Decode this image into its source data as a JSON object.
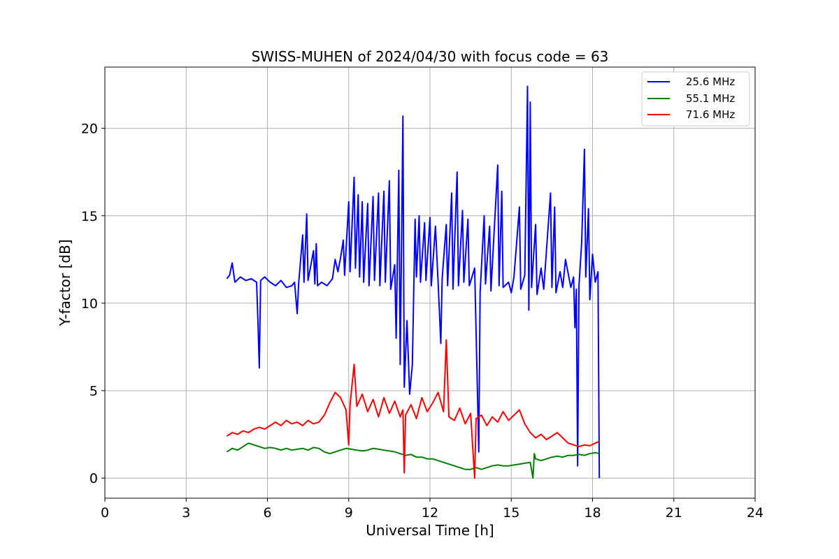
{
  "chart_data": {
    "type": "line",
    "title": "SWISS-MUHEN of 2024/04/30 with focus code = 63",
    "xlabel": "Universal Time [h]",
    "ylabel": "Y-factor [dB]",
    "xlim": [
      0,
      24
    ],
    "ylim": [
      -1.15,
      23.5
    ],
    "xticks": [
      0,
      3,
      6,
      9,
      12,
      15,
      18,
      21,
      24
    ],
    "yticks": [
      0,
      5,
      10,
      15,
      20
    ],
    "grid": true,
    "legend_position": "top-right",
    "series": [
      {
        "name": "25.6 MHz",
        "color": "#0000ff",
        "points": [
          [
            4.5,
            11.4
          ],
          [
            4.6,
            11.6
          ],
          [
            4.7,
            12.3
          ],
          [
            4.8,
            11.2
          ],
          [
            5.0,
            11.5
          ],
          [
            5.2,
            11.3
          ],
          [
            5.4,
            11.4
          ],
          [
            5.6,
            11.2
          ],
          [
            5.65,
            9.0
          ],
          [
            5.7,
            6.3
          ],
          [
            5.75,
            11.3
          ],
          [
            5.9,
            11.5
          ],
          [
            6.1,
            11.2
          ],
          [
            6.3,
            11.0
          ],
          [
            6.5,
            11.3
          ],
          [
            6.7,
            10.9
          ],
          [
            6.9,
            11.0
          ],
          [
            7.0,
            11.2
          ],
          [
            7.1,
            9.4
          ],
          [
            7.15,
            11.1
          ],
          [
            7.3,
            13.9
          ],
          [
            7.35,
            11.2
          ],
          [
            7.45,
            15.1
          ],
          [
            7.5,
            11.3
          ],
          [
            7.7,
            13.0
          ],
          [
            7.75,
            11.1
          ],
          [
            7.8,
            13.4
          ],
          [
            7.85,
            11.0
          ],
          [
            8.0,
            11.2
          ],
          [
            8.2,
            11.0
          ],
          [
            8.4,
            11.4
          ],
          [
            8.5,
            12.5
          ],
          [
            8.6,
            11.8
          ],
          [
            8.7,
            12.6
          ],
          [
            8.8,
            13.6
          ],
          [
            8.85,
            11.6
          ],
          [
            9.0,
            15.8
          ],
          [
            9.05,
            11.8
          ],
          [
            9.2,
            17.2
          ],
          [
            9.25,
            12.0
          ],
          [
            9.35,
            16.2
          ],
          [
            9.4,
            11.5
          ],
          [
            9.5,
            15.8
          ],
          [
            9.55,
            11.2
          ],
          [
            9.7,
            15.7
          ],
          [
            9.75,
            11.0
          ],
          [
            9.9,
            16.1
          ],
          [
            9.95,
            11.3
          ],
          [
            10.1,
            16.3
          ],
          [
            10.15,
            11.0
          ],
          [
            10.3,
            16.4
          ],
          [
            10.35,
            11.2
          ],
          [
            10.5,
            17.0
          ],
          [
            10.55,
            10.8
          ],
          [
            10.7,
            12.2
          ],
          [
            10.75,
            8.0
          ],
          [
            10.85,
            17.6
          ],
          [
            10.9,
            6.5
          ],
          [
            11.0,
            20.7
          ],
          [
            11.05,
            5.2
          ],
          [
            11.15,
            9.0
          ],
          [
            11.25,
            4.8
          ],
          [
            11.35,
            6.5
          ],
          [
            11.45,
            14.8
          ],
          [
            11.5,
            11.5
          ],
          [
            11.6,
            15.0
          ],
          [
            11.65,
            11.2
          ],
          [
            11.8,
            14.6
          ],
          [
            11.85,
            11.3
          ],
          [
            12.0,
            14.9
          ],
          [
            12.05,
            11.0
          ],
          [
            12.2,
            14.4
          ],
          [
            12.3,
            11.2
          ],
          [
            12.4,
            7.7
          ],
          [
            12.45,
            11.4
          ],
          [
            12.6,
            14.5
          ],
          [
            12.65,
            11.0
          ],
          [
            12.8,
            16.3
          ],
          [
            12.85,
            10.8
          ],
          [
            13.0,
            17.5
          ],
          [
            13.05,
            11.0
          ],
          [
            13.2,
            15.3
          ],
          [
            13.25,
            11.2
          ],
          [
            13.4,
            14.8
          ],
          [
            13.45,
            11.0
          ],
          [
            13.65,
            12.0
          ],
          [
            13.8,
            1.5
          ],
          [
            13.85,
            10.6
          ],
          [
            14.0,
            15.0
          ],
          [
            14.05,
            11.1
          ],
          [
            14.2,
            14.4
          ],
          [
            14.25,
            10.7
          ],
          [
            14.5,
            17.9
          ],
          [
            14.55,
            11.0
          ],
          [
            14.65,
            16.4
          ],
          [
            14.7,
            10.9
          ],
          [
            14.9,
            11.2
          ],
          [
            15.0,
            10.6
          ],
          [
            15.1,
            11.5
          ],
          [
            15.3,
            15.5
          ],
          [
            15.35,
            10.8
          ],
          [
            15.5,
            11.6
          ],
          [
            15.6,
            22.4
          ],
          [
            15.65,
            9.6
          ],
          [
            15.7,
            21.5
          ],
          [
            15.75,
            10.9
          ],
          [
            15.9,
            14.5
          ],
          [
            15.95,
            10.5
          ],
          [
            16.1,
            12.0
          ],
          [
            16.2,
            10.8
          ],
          [
            16.45,
            16.3
          ],
          [
            16.5,
            10.9
          ],
          [
            16.6,
            15.5
          ],
          [
            16.65,
            10.6
          ],
          [
            16.8,
            11.8
          ],
          [
            16.9,
            10.9
          ],
          [
            17.0,
            12.5
          ],
          [
            17.2,
            10.9
          ],
          [
            17.3,
            11.5
          ],
          [
            17.35,
            8.6
          ],
          [
            17.4,
            10.8
          ],
          [
            17.45,
            0.7
          ],
          [
            17.5,
            11.0
          ],
          [
            17.6,
            13.5
          ],
          [
            17.7,
            18.8
          ],
          [
            17.75,
            11.5
          ],
          [
            17.85,
            15.4
          ],
          [
            17.9,
            10.2
          ],
          [
            18.0,
            12.8
          ],
          [
            18.1,
            11.2
          ],
          [
            18.2,
            11.8
          ],
          [
            18.25,
            0.0
          ]
        ]
      },
      {
        "name": "55.1 MHz",
        "color": "#008000",
        "points": [
          [
            4.5,
            1.5
          ],
          [
            4.7,
            1.7
          ],
          [
            4.9,
            1.6
          ],
          [
            5.1,
            1.8
          ],
          [
            5.3,
            2.0
          ],
          [
            5.5,
            1.9
          ],
          [
            5.7,
            1.8
          ],
          [
            5.9,
            1.7
          ],
          [
            6.1,
            1.75
          ],
          [
            6.3,
            1.7
          ],
          [
            6.5,
            1.6
          ],
          [
            6.7,
            1.7
          ],
          [
            6.9,
            1.6
          ],
          [
            7.1,
            1.65
          ],
          [
            7.3,
            1.7
          ],
          [
            7.5,
            1.6
          ],
          [
            7.7,
            1.75
          ],
          [
            7.9,
            1.7
          ],
          [
            8.1,
            1.5
          ],
          [
            8.3,
            1.4
          ],
          [
            8.5,
            1.5
          ],
          [
            8.7,
            1.6
          ],
          [
            8.9,
            1.7
          ],
          [
            9.1,
            1.65
          ],
          [
            9.3,
            1.6
          ],
          [
            9.5,
            1.55
          ],
          [
            9.7,
            1.6
          ],
          [
            9.9,
            1.7
          ],
          [
            10.1,
            1.65
          ],
          [
            10.3,
            1.6
          ],
          [
            10.5,
            1.55
          ],
          [
            10.7,
            1.5
          ],
          [
            10.9,
            1.4
          ],
          [
            11.1,
            1.3
          ],
          [
            11.3,
            1.35
          ],
          [
            11.5,
            1.2
          ],
          [
            11.7,
            1.2
          ],
          [
            11.9,
            1.1
          ],
          [
            12.1,
            1.1
          ],
          [
            12.3,
            1.0
          ],
          [
            12.5,
            0.9
          ],
          [
            12.7,
            0.8
          ],
          [
            12.9,
            0.7
          ],
          [
            13.1,
            0.6
          ],
          [
            13.3,
            0.5
          ],
          [
            13.5,
            0.5
          ],
          [
            13.7,
            0.6
          ],
          [
            13.9,
            0.5
          ],
          [
            14.1,
            0.6
          ],
          [
            14.3,
            0.7
          ],
          [
            14.5,
            0.75
          ],
          [
            14.7,
            0.7
          ],
          [
            14.9,
            0.7
          ],
          [
            15.1,
            0.75
          ],
          [
            15.3,
            0.8
          ],
          [
            15.5,
            0.85
          ],
          [
            15.7,
            0.9
          ],
          [
            15.8,
            0.0
          ],
          [
            15.85,
            1.4
          ],
          [
            15.9,
            1.1
          ],
          [
            16.1,
            1.0
          ],
          [
            16.3,
            1.1
          ],
          [
            16.5,
            1.2
          ],
          [
            16.7,
            1.25
          ],
          [
            16.9,
            1.2
          ],
          [
            17.1,
            1.3
          ],
          [
            17.3,
            1.3
          ],
          [
            17.5,
            1.35
          ],
          [
            17.7,
            1.3
          ],
          [
            17.9,
            1.4
          ],
          [
            18.1,
            1.45
          ],
          [
            18.25,
            1.4
          ]
        ]
      },
      {
        "name": "71.6 MHz",
        "color": "#ff0000",
        "points": [
          [
            4.5,
            2.4
          ],
          [
            4.7,
            2.6
          ],
          [
            4.9,
            2.5
          ],
          [
            5.1,
            2.7
          ],
          [
            5.3,
            2.6
          ],
          [
            5.5,
            2.8
          ],
          [
            5.7,
            2.9
          ],
          [
            5.9,
            2.8
          ],
          [
            6.1,
            3.0
          ],
          [
            6.3,
            3.2
          ],
          [
            6.5,
            3.0
          ],
          [
            6.7,
            3.3
          ],
          [
            6.9,
            3.1
          ],
          [
            7.1,
            3.2
          ],
          [
            7.3,
            3.0
          ],
          [
            7.5,
            3.3
          ],
          [
            7.7,
            3.1
          ],
          [
            7.9,
            3.2
          ],
          [
            8.1,
            3.6
          ],
          [
            8.3,
            4.3
          ],
          [
            8.5,
            4.9
          ],
          [
            8.7,
            4.6
          ],
          [
            8.9,
            3.9
          ],
          [
            9.0,
            1.9
          ],
          [
            9.05,
            4.2
          ],
          [
            9.2,
            6.5
          ],
          [
            9.3,
            4.1
          ],
          [
            9.5,
            4.8
          ],
          [
            9.7,
            3.8
          ],
          [
            9.9,
            4.5
          ],
          [
            10.1,
            3.5
          ],
          [
            10.3,
            4.6
          ],
          [
            10.5,
            3.7
          ],
          [
            10.7,
            4.4
          ],
          [
            10.9,
            3.5
          ],
          [
            11.0,
            3.9
          ],
          [
            11.05,
            0.3
          ],
          [
            11.1,
            3.6
          ],
          [
            11.3,
            4.2
          ],
          [
            11.5,
            3.4
          ],
          [
            11.7,
            4.6
          ],
          [
            11.9,
            3.8
          ],
          [
            12.1,
            4.3
          ],
          [
            12.3,
            4.9
          ],
          [
            12.5,
            3.8
          ],
          [
            12.6,
            7.9
          ],
          [
            12.7,
            3.5
          ],
          [
            12.9,
            3.3
          ],
          [
            13.1,
            4.0
          ],
          [
            13.3,
            3.1
          ],
          [
            13.5,
            3.7
          ],
          [
            13.65,
            0.0
          ],
          [
            13.7,
            3.4
          ],
          [
            13.9,
            3.6
          ],
          [
            14.1,
            3.0
          ],
          [
            14.3,
            3.5
          ],
          [
            14.5,
            3.2
          ],
          [
            14.7,
            3.8
          ],
          [
            14.9,
            3.3
          ],
          [
            15.1,
            3.6
          ],
          [
            15.3,
            3.9
          ],
          [
            15.5,
            3.1
          ],
          [
            15.7,
            2.6
          ],
          [
            15.9,
            2.3
          ],
          [
            16.1,
            2.5
          ],
          [
            16.3,
            2.2
          ],
          [
            16.5,
            2.4
          ],
          [
            16.7,
            2.6
          ],
          [
            16.9,
            2.3
          ],
          [
            17.1,
            2.0
          ],
          [
            17.3,
            1.9
          ],
          [
            17.5,
            1.8
          ],
          [
            17.7,
            1.9
          ],
          [
            17.9,
            1.85
          ],
          [
            18.1,
            2.0
          ],
          [
            18.25,
            2.1
          ]
        ]
      }
    ]
  }
}
